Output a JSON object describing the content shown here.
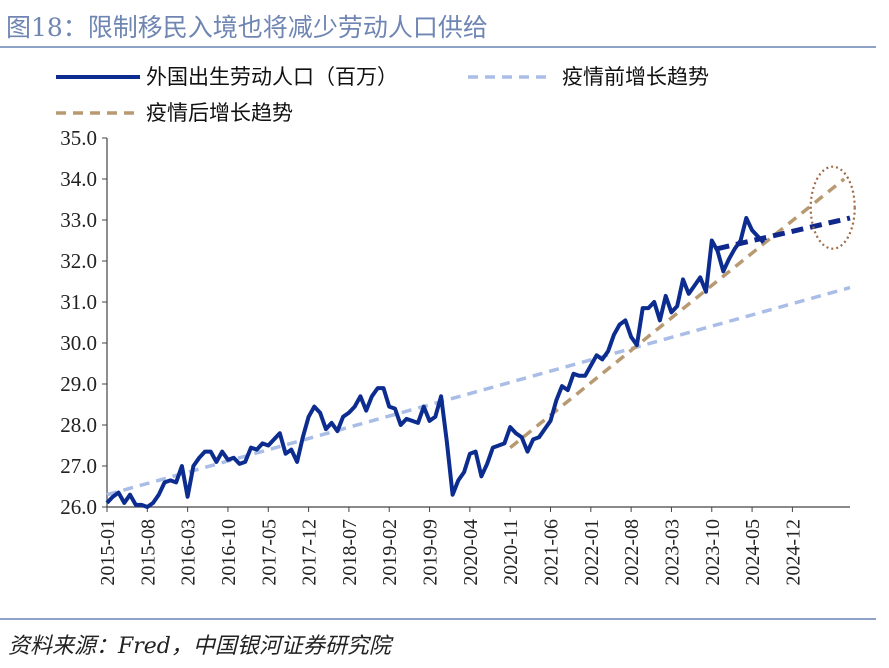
{
  "figure_title": "图18：限制移民入境也将减少劳动人口供给",
  "source": "资料来源：Fred，中国银河证券研究院",
  "colors": {
    "workforce": "#0c2d8f",
    "pre_trend": "#a9bde6",
    "post_trend": "#b89a72",
    "recent_trend": "#10288c",
    "highlight_ellipse": "#a06a45",
    "rule": "#8ea2c8",
    "title": "#6f86b3"
  },
  "chart_data": {
    "type": "line",
    "title": "",
    "xlabel": "",
    "ylabel": "",
    "ylim": [
      26.0,
      35.0
    ],
    "xlim": [
      "2015-01",
      "2025-10"
    ],
    "yticks": [
      "26.0",
      "27.0",
      "28.0",
      "29.0",
      "30.0",
      "31.0",
      "32.0",
      "33.0",
      "34.0",
      "35.0"
    ],
    "xticks": [
      "2015-01",
      "2015-08",
      "2016-03",
      "2016-10",
      "2017-05",
      "2017-12",
      "2018-07",
      "2019-02",
      "2019-09",
      "2020-04",
      "2020-11",
      "2021-06",
      "2022-01",
      "2022-08",
      "2023-03",
      "2023-10",
      "2024-05",
      "2024-12"
    ],
    "grid": false,
    "legend_position": "top",
    "legend": [
      "外国出生劳动人口（百万）",
      "疫情前增长趋势",
      "疫情后增长趋势"
    ],
    "series": [
      {
        "name": "外国出生劳动人口（百万）",
        "style": "solid",
        "x": [
          "2015-01",
          "2015-02",
          "2015-03",
          "2015-04",
          "2015-05",
          "2015-06",
          "2015-07",
          "2015-08",
          "2015-09",
          "2015-10",
          "2015-11",
          "2015-12",
          "2016-01",
          "2016-02",
          "2016-03",
          "2016-04",
          "2016-05",
          "2016-06",
          "2016-07",
          "2016-08",
          "2016-09",
          "2016-10",
          "2016-11",
          "2016-12",
          "2017-01",
          "2017-02",
          "2017-03",
          "2017-04",
          "2017-05",
          "2017-06",
          "2017-07",
          "2017-08",
          "2017-09",
          "2017-10",
          "2017-11",
          "2017-12",
          "2018-01",
          "2018-02",
          "2018-03",
          "2018-04",
          "2018-05",
          "2018-06",
          "2018-07",
          "2018-08",
          "2018-09",
          "2018-10",
          "2018-11",
          "2018-12",
          "2019-01",
          "2019-02",
          "2019-03",
          "2019-04",
          "2019-05",
          "2019-06",
          "2019-07",
          "2019-08",
          "2019-09",
          "2019-10",
          "2019-11",
          "2019-12",
          "2020-01",
          "2020-02",
          "2020-03",
          "2020-04",
          "2020-05",
          "2020-06",
          "2020-07",
          "2020-08",
          "2020-09",
          "2020-10",
          "2020-11",
          "2020-12",
          "2021-01",
          "2021-02",
          "2021-03",
          "2021-04",
          "2021-05",
          "2021-06",
          "2021-07",
          "2021-08",
          "2021-09",
          "2021-10",
          "2021-11",
          "2021-12",
          "2022-01",
          "2022-02",
          "2022-03",
          "2022-04",
          "2022-05",
          "2022-06",
          "2022-07",
          "2022-08",
          "2022-09",
          "2022-10",
          "2022-11",
          "2022-12",
          "2023-01",
          "2023-02",
          "2023-03",
          "2023-04",
          "2023-05",
          "2023-06",
          "2023-07",
          "2023-08",
          "2023-09",
          "2023-10",
          "2023-11",
          "2023-12",
          "2024-01",
          "2024-02",
          "2024-03",
          "2024-04",
          "2024-05",
          "2024-06",
          "2024-07"
        ],
        "values": [
          26.1,
          26.25,
          26.35,
          26.1,
          26.3,
          26.05,
          26.05,
          26.0,
          26.1,
          26.3,
          26.6,
          26.65,
          26.6,
          27.0,
          26.25,
          27.0,
          27.2,
          27.35,
          27.35,
          27.1,
          27.35,
          27.15,
          27.2,
          27.05,
          27.1,
          27.45,
          27.4,
          27.55,
          27.5,
          27.65,
          27.8,
          27.3,
          27.4,
          27.1,
          27.7,
          28.2,
          28.45,
          28.3,
          27.9,
          28.05,
          27.85,
          28.2,
          28.3,
          28.45,
          28.7,
          28.35,
          28.7,
          28.9,
          28.9,
          28.45,
          28.4,
          28.0,
          28.15,
          28.1,
          28.05,
          28.45,
          28.1,
          28.2,
          28.7,
          27.6,
          26.3,
          26.65,
          26.85,
          27.3,
          27.35,
          26.75,
          27.05,
          27.45,
          27.5,
          27.55,
          27.95,
          27.8,
          27.7,
          27.35,
          27.65,
          27.7,
          27.9,
          28.1,
          28.6,
          28.95,
          28.85,
          29.25,
          29.2,
          29.2,
          29.45,
          29.7,
          29.6,
          29.8,
          30.2,
          30.45,
          30.55,
          30.15,
          29.95,
          30.85,
          30.85,
          31.0,
          30.55,
          31.15,
          30.75,
          30.9,
          31.55,
          31.2,
          31.4,
          31.6,
          31.25,
          32.5,
          32.25,
          31.75,
          32.05,
          32.3,
          32.5,
          33.05,
          32.75,
          32.6,
          32.45
        ]
      },
      {
        "name": "疫情前增长趋势",
        "style": "dashed",
        "x": [
          "2015-01",
          "2025-10"
        ],
        "values": [
          26.3,
          31.35
        ]
      },
      {
        "name": "疫情后增长趋势",
        "style": "dashed",
        "x": [
          "2020-11",
          "2025-09"
        ],
        "values": [
          27.45,
          34.0
        ]
      },
      {
        "name": "",
        "style": "dashed-bold",
        "x": [
          "2023-11",
          "2025-10"
        ],
        "values": [
          32.3,
          33.05
        ]
      }
    ],
    "annotation": {
      "shape": "ellipse",
      "center": [
        "2025-07",
        33.3
      ],
      "note": ""
    }
  }
}
